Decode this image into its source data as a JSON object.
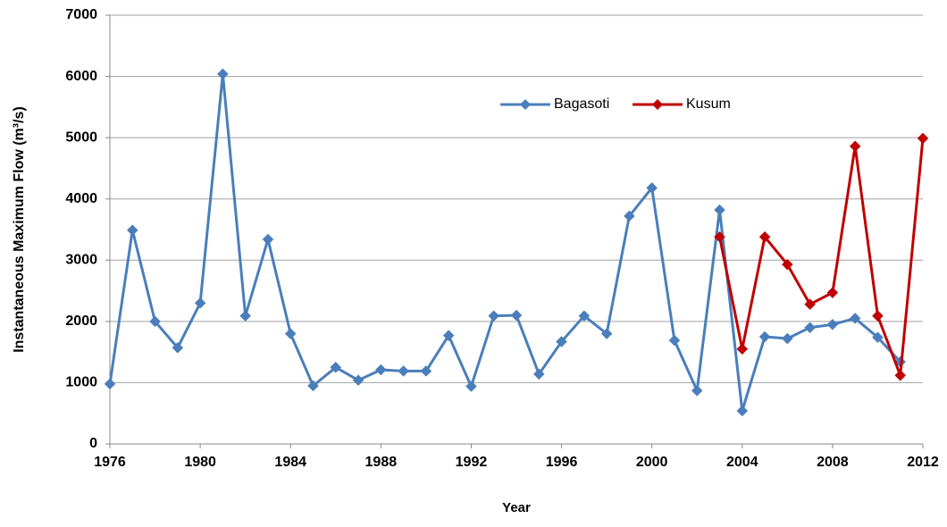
{
  "chart_data": {
    "type": "line",
    "y_label": "Instantaneous Maximum Flow (m³/s)",
    "x_label": "Year",
    "xlim": [
      1976,
      2012
    ],
    "xticks": [
      1976,
      1980,
      1984,
      1988,
      1992,
      1996,
      2000,
      2004,
      2008,
      2012
    ],
    "ylim": [
      0,
      7000
    ],
    "yticks": [
      0,
      1000,
      2000,
      3000,
      4000,
      5000,
      6000,
      7000
    ],
    "grid": true,
    "legend": "top",
    "series": [
      {
        "name": "Bagasoti",
        "color": "#4a7ebb",
        "x": [
          1976,
          1977,
          1978,
          1979,
          1980,
          1981,
          1982,
          1983,
          1984,
          1985,
          1986,
          1987,
          1988,
          1989,
          1990,
          1991,
          1992,
          1993,
          1994,
          1995,
          1996,
          1997,
          1998,
          1999,
          2000,
          2001,
          2002,
          2003,
          2004,
          2005,
          2006,
          2007,
          2008,
          2009,
          2010,
          2011
        ],
        "values": [
          980,
          3490,
          2000,
          1570,
          2300,
          6040,
          2090,
          3340,
          1800,
          950,
          1250,
          1040,
          1210,
          1190,
          1190,
          1770,
          940,
          2090,
          2100,
          1140,
          1670,
          2090,
          1800,
          3720,
          4180,
          1690,
          870,
          3820,
          540,
          1750,
          1720,
          1900,
          1950,
          2050,
          1740,
          1340
        ]
      },
      {
        "name": "Kusum",
        "color": "#c00000",
        "x": [
          2003,
          2004,
          2005,
          2006,
          2007,
          2008,
          2009,
          2010,
          2011,
          2012
        ],
        "values": [
          3380,
          1550,
          3380,
          2930,
          2280,
          2470,
          4860,
          2090,
          1120,
          4990
        ]
      }
    ]
  }
}
